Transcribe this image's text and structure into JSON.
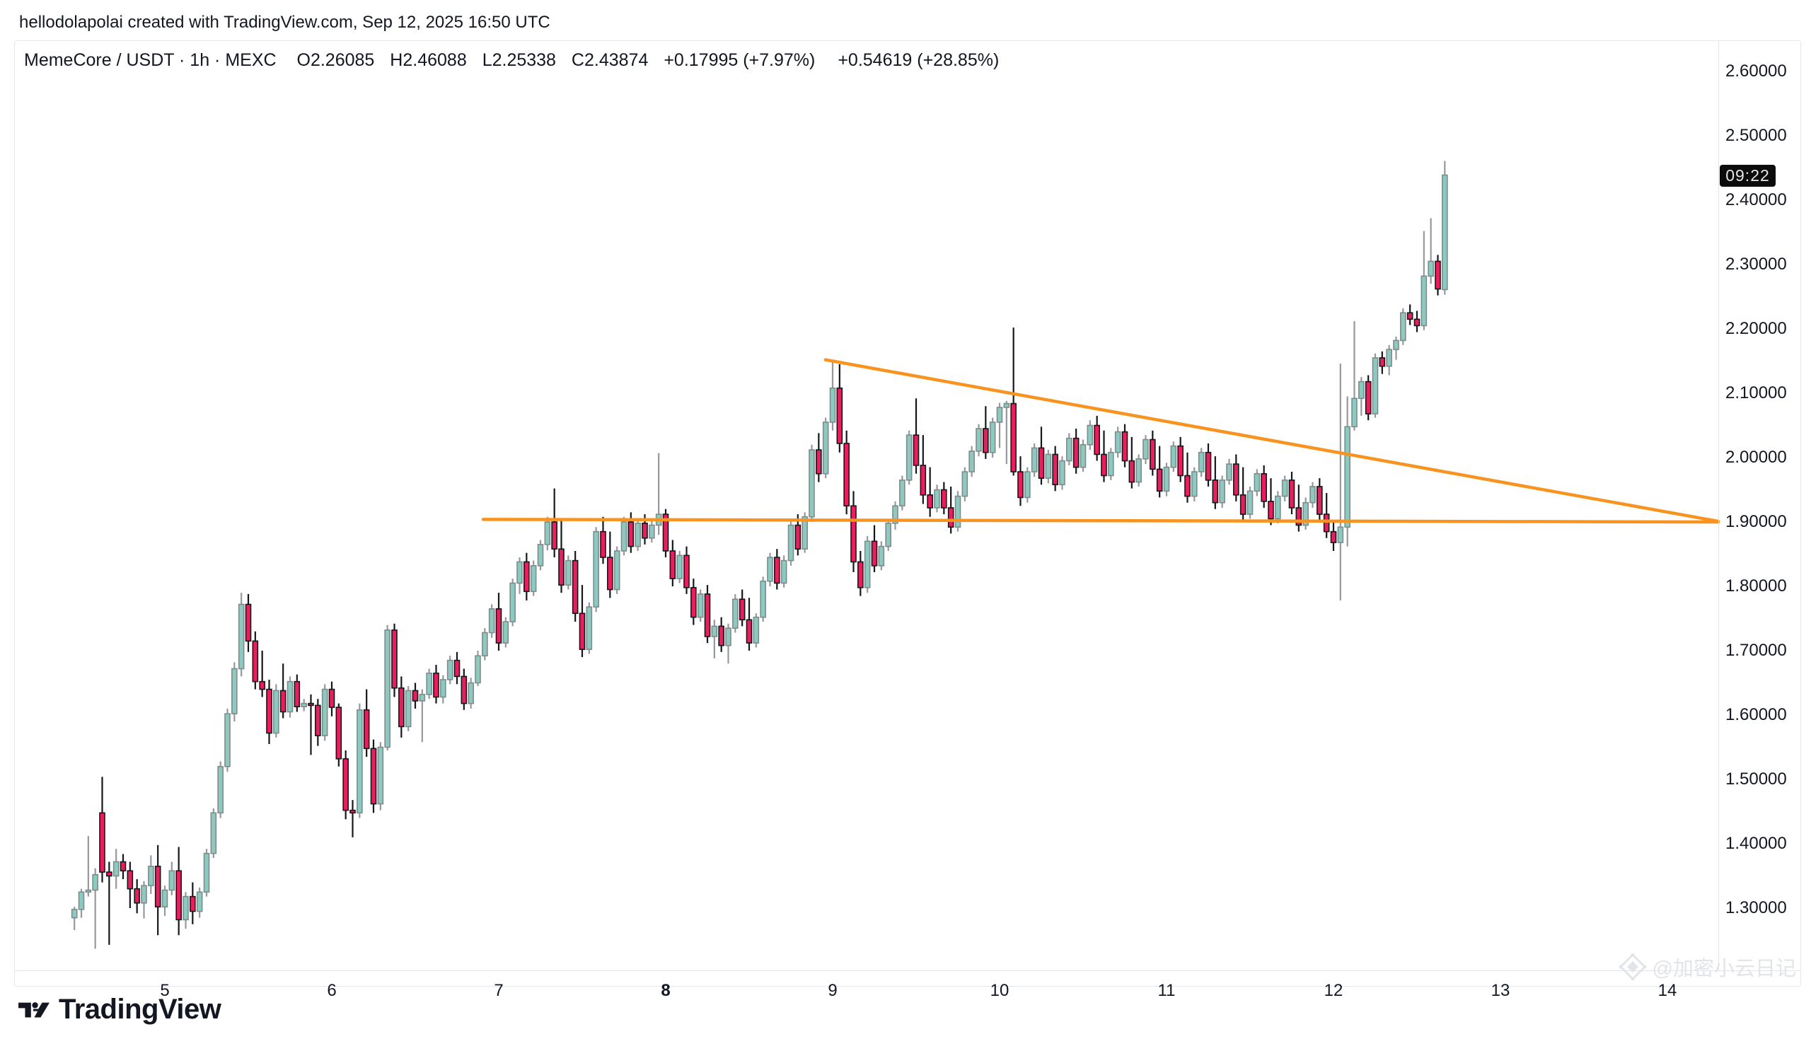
{
  "header": {
    "attribution": "hellodolapolai created with TradingView.com, Sep 12, 2025 16:50 UTC"
  },
  "legend": {
    "title": "MemeCore / USDT · 1h · MEXC",
    "open": "O2.26085",
    "high": "H2.46088",
    "low": "L2.25338",
    "close": "C2.43874",
    "change": "+0.17995 (+7.97%)",
    "change2": "+0.54619 (+28.85%)"
  },
  "price_scale": {
    "labels": [
      "2.60000",
      "2.50000",
      "2.40000",
      "2.30000",
      "2.20000",
      "2.10000",
      "2.00000",
      "1.90000",
      "1.80000",
      "1.70000",
      "1.60000",
      "1.50000",
      "1.40000",
      "1.30000"
    ],
    "countdown": "09:22",
    "countdown_price": 2.43874
  },
  "time_scale": {
    "labels": [
      {
        "text": "5",
        "day": 5,
        "bold": false
      },
      {
        "text": "6",
        "day": 6,
        "bold": false
      },
      {
        "text": "7",
        "day": 7,
        "bold": false
      },
      {
        "text": "8",
        "day": 8,
        "bold": true
      },
      {
        "text": "9",
        "day": 9,
        "bold": false
      },
      {
        "text": "10",
        "day": 10,
        "bold": false
      },
      {
        "text": "11",
        "day": 11,
        "bold": false
      },
      {
        "text": "12",
        "day": 12,
        "bold": false
      },
      {
        "text": "13",
        "day": 13,
        "bold": false
      },
      {
        "text": "14",
        "day": 14,
        "bold": false
      }
    ]
  },
  "footer": {
    "logo_text": "TradingView"
  },
  "watermark": {
    "text": "@加密小云日记"
  },
  "chart_data": {
    "type": "candlestick",
    "title": "MemeCore / USDT",
    "exchange": "MEXC",
    "interval": "1h",
    "last_bar": {
      "open": 2.26085,
      "high": 2.46088,
      "low": 2.25338,
      "close": 2.43874,
      "change_abs": 0.17995,
      "change_pct": 7.97,
      "change2_abs": 0.54619,
      "change2_pct": 28.85,
      "countdown": "09:22"
    },
    "y_axis": {
      "side": "right",
      "min": 1.3,
      "max": 2.6,
      "tick_step": 0.1,
      "grid": false
    },
    "x_axis": {
      "unit": "September 2025 (day)",
      "ticks": [
        5,
        6,
        7,
        8,
        9,
        10,
        11,
        12,
        13,
        14
      ],
      "bold_tick": 8
    },
    "series_start": "2025-09-04 11:00 UTC",
    "bar_interval_hours": 1,
    "trendlines": [
      {
        "name": "descending-resistance",
        "from": {
          "day": 8.957,
          "price": 2.152
        },
        "to": {
          "day": 14.305,
          "price": 1.901
        },
        "color": "#f7931e"
      },
      {
        "name": "horizontal-support",
        "from": {
          "day": 6.907,
          "price": 1.904
        },
        "to": {
          "day": 14.305,
          "price": 1.9
        },
        "color": "#f7931e"
      }
    ],
    "colors": {
      "up_fill": "#8ccac1",
      "up_border": "#7f8c8a",
      "up_wick": "#96989d",
      "down_fill": "#e91e5c",
      "down_border": "#14171c",
      "down_wick": "#14171c",
      "trendline": "#f7931e",
      "axis_text": "#131722",
      "border": "#e0e3eb"
    },
    "candles": [
      [
        1.285,
        1.302,
        1.266,
        1.298
      ],
      [
        1.298,
        1.33,
        1.285,
        1.325
      ],
      [
        1.325,
        1.412,
        1.318,
        1.328
      ],
      [
        1.328,
        1.362,
        1.237,
        1.352
      ],
      [
        1.448,
        1.504,
        1.34,
        1.356
      ],
      [
        1.356,
        1.372,
        1.243,
        1.35
      ],
      [
        1.35,
        1.392,
        1.33,
        1.372
      ],
      [
        1.372,
        1.384,
        1.345,
        1.358
      ],
      [
        1.358,
        1.372,
        1.3,
        1.33
      ],
      [
        1.33,
        1.345,
        1.292,
        1.308
      ],
      [
        1.308,
        1.342,
        1.284,
        1.335
      ],
      [
        1.335,
        1.382,
        1.322,
        1.365
      ],
      [
        1.365,
        1.398,
        1.258,
        1.302
      ],
      [
        1.302,
        1.335,
        1.288,
        1.328
      ],
      [
        1.328,
        1.372,
        1.32,
        1.358
      ],
      [
        1.358,
        1.395,
        1.258,
        1.282
      ],
      [
        1.282,
        1.325,
        1.268,
        1.318
      ],
      [
        1.318,
        1.34,
        1.275,
        1.295
      ],
      [
        1.295,
        1.332,
        1.285,
        1.325
      ],
      [
        1.325,
        1.392,
        1.318,
        1.385
      ],
      [
        1.385,
        1.455,
        1.378,
        1.448
      ],
      [
        1.448,
        1.528,
        1.44,
        1.52
      ],
      [
        1.52,
        1.61,
        1.512,
        1.602
      ],
      [
        1.602,
        1.682,
        1.59,
        1.672
      ],
      [
        1.672,
        1.79,
        1.66,
        1.772
      ],
      [
        1.772,
        1.788,
        1.698,
        1.715
      ],
      [
        1.715,
        1.73,
        1.64,
        1.652
      ],
      [
        1.652,
        1.7,
        1.628,
        1.64
      ],
      [
        1.64,
        1.655,
        1.555,
        1.572
      ],
      [
        1.572,
        1.648,
        1.565,
        1.638
      ],
      [
        1.638,
        1.68,
        1.595,
        1.605
      ],
      [
        1.605,
        1.66,
        1.596,
        1.652
      ],
      [
        1.652,
        1.663,
        1.605,
        1.613
      ],
      [
        1.613,
        1.625,
        1.606,
        1.618
      ],
      [
        1.618,
        1.632,
        1.538,
        1.615
      ],
      [
        1.615,
        1.625,
        1.552,
        1.568
      ],
      [
        1.568,
        1.648,
        1.56,
        1.64
      ],
      [
        1.64,
        1.652,
        1.598,
        1.612
      ],
      [
        1.612,
        1.618,
        1.52,
        1.532
      ],
      [
        1.532,
        1.545,
        1.438,
        1.452
      ],
      [
        1.452,
        1.468,
        1.41,
        1.448
      ],
      [
        1.448,
        1.618,
        1.44,
        1.608
      ],
      [
        1.608,
        1.64,
        1.535,
        1.548
      ],
      [
        1.548,
        1.562,
        1.448,
        1.462
      ],
      [
        1.462,
        1.558,
        1.452,
        1.55
      ],
      [
        1.55,
        1.74,
        1.545,
        1.732
      ],
      [
        1.732,
        1.742,
        1.628,
        1.642
      ],
      [
        1.642,
        1.66,
        1.565,
        1.582
      ],
      [
        1.582,
        1.645,
        1.575,
        1.638
      ],
      [
        1.638,
        1.65,
        1.61,
        1.622
      ],
      [
        1.622,
        1.64,
        1.558,
        1.632
      ],
      [
        1.632,
        1.672,
        1.625,
        1.665
      ],
      [
        1.665,
        1.678,
        1.618,
        1.628
      ],
      [
        1.628,
        1.662,
        1.618,
        1.655
      ],
      [
        1.655,
        1.692,
        1.648,
        1.685
      ],
      [
        1.685,
        1.698,
        1.648,
        1.66
      ],
      [
        1.66,
        1.672,
        1.608,
        1.618
      ],
      [
        1.618,
        1.658,
        1.61,
        1.65
      ],
      [
        1.65,
        1.7,
        1.645,
        1.692
      ],
      [
        1.692,
        1.735,
        1.685,
        1.728
      ],
      [
        1.728,
        1.772,
        1.72,
        1.765
      ],
      [
        1.765,
        1.79,
        1.7,
        1.712
      ],
      [
        1.712,
        1.752,
        1.705,
        1.745
      ],
      [
        1.745,
        1.812,
        1.738,
        1.805
      ],
      [
        1.805,
        1.845,
        1.788,
        1.838
      ],
      [
        1.838,
        1.852,
        1.778,
        1.792
      ],
      [
        1.792,
        1.84,
        1.785,
        1.832
      ],
      [
        1.832,
        1.872,
        1.825,
        1.865
      ],
      [
        1.865,
        1.908,
        1.856,
        1.9
      ],
      [
        1.9,
        1.952,
        1.845,
        1.858
      ],
      [
        1.858,
        1.905,
        1.79,
        1.802
      ],
      [
        1.802,
        1.848,
        1.795,
        1.84
      ],
      [
        1.84,
        1.855,
        1.745,
        1.758
      ],
      [
        1.758,
        1.802,
        1.69,
        1.702
      ],
      [
        1.702,
        1.775,
        1.695,
        1.768
      ],
      [
        1.768,
        1.892,
        1.76,
        1.885
      ],
      [
        1.885,
        1.908,
        1.835,
        1.845
      ],
      [
        1.845,
        1.885,
        1.782,
        1.795
      ],
      [
        1.795,
        1.862,
        1.788,
        1.855
      ],
      [
        1.855,
        1.908,
        1.848,
        1.9
      ],
      [
        1.9,
        1.915,
        1.852,
        1.862
      ],
      [
        1.862,
        1.905,
        1.855,
        1.898
      ],
      [
        1.898,
        1.912,
        1.865,
        1.875
      ],
      [
        1.875,
        1.902,
        1.868,
        1.895
      ],
      [
        1.895,
        2.007,
        1.88,
        1.912
      ],
      [
        1.912,
        1.92,
        1.845,
        1.855
      ],
      [
        1.855,
        1.872,
        1.8,
        1.812
      ],
      [
        1.812,
        1.855,
        1.805,
        1.848
      ],
      [
        1.848,
        1.862,
        1.788,
        1.798
      ],
      [
        1.798,
        1.812,
        1.74,
        1.752
      ],
      [
        1.752,
        1.795,
        1.745,
        1.788
      ],
      [
        1.788,
        1.802,
        1.712,
        1.722
      ],
      [
        1.722,
        1.748,
        1.688,
        1.738
      ],
      [
        1.738,
        1.752,
        1.698,
        1.708
      ],
      [
        1.708,
        1.742,
        1.68,
        1.735
      ],
      [
        1.735,
        1.788,
        1.728,
        1.78
      ],
      [
        1.78,
        1.795,
        1.738,
        1.748
      ],
      [
        1.748,
        1.782,
        1.7,
        1.712
      ],
      [
        1.712,
        1.758,
        1.705,
        1.752
      ],
      [
        1.752,
        1.815,
        1.745,
        1.808
      ],
      [
        1.808,
        1.852,
        1.8,
        1.845
      ],
      [
        1.845,
        1.858,
        1.795,
        1.805
      ],
      [
        1.805,
        1.848,
        1.798,
        1.84
      ],
      [
        1.84,
        1.902,
        1.832,
        1.895
      ],
      [
        1.895,
        1.912,
        1.848,
        1.858
      ],
      [
        1.858,
        1.915,
        1.852,
        1.908
      ],
      [
        1.908,
        2.02,
        1.9,
        2.012
      ],
      [
        2.012,
        2.038,
        1.962,
        1.975
      ],
      [
        1.975,
        2.062,
        1.968,
        2.055
      ],
      [
        2.055,
        2.152,
        2.042,
        2.108
      ],
      [
        2.108,
        2.145,
        2.008,
        2.022
      ],
      [
        2.022,
        2.042,
        1.912,
        1.925
      ],
      [
        1.925,
        1.948,
        1.822,
        1.838
      ],
      [
        1.838,
        1.855,
        1.785,
        1.798
      ],
      [
        1.798,
        1.878,
        1.79,
        1.87
      ],
      [
        1.87,
        1.895,
        1.822,
        1.832
      ],
      [
        1.832,
        1.87,
        1.825,
        1.862
      ],
      [
        1.862,
        1.905,
        1.855,
        1.898
      ],
      [
        1.898,
        1.932,
        1.888,
        1.925
      ],
      [
        1.925,
        1.972,
        1.918,
        1.965
      ],
      [
        1.965,
        2.042,
        1.958,
        2.035
      ],
      [
        2.035,
        2.092,
        1.975,
        1.988
      ],
      [
        1.988,
        2.035,
        1.928,
        1.942
      ],
      [
        1.942,
        1.985,
        1.908,
        1.922
      ],
      [
        1.922,
        1.958,
        1.915,
        1.95
      ],
      [
        1.95,
        1.962,
        1.912,
        1.922
      ],
      [
        1.922,
        1.955,
        1.882,
        1.892
      ],
      [
        1.892,
        1.948,
        1.885,
        1.94
      ],
      [
        1.94,
        1.985,
        1.932,
        1.978
      ],
      [
        1.978,
        2.018,
        1.97,
        2.01
      ],
      [
        2.01,
        2.052,
        2.002,
        2.045
      ],
      [
        2.045,
        2.08,
        1.998,
        2.008
      ],
      [
        2.008,
        2.062,
        2.0,
        2.055
      ],
      [
        2.055,
        2.085,
        2.015,
        2.078
      ],
      [
        2.078,
        2.088,
        1.99,
        2.084
      ],
      [
        2.084,
        2.202,
        1.972,
        1.978
      ],
      [
        1.978,
        2.002,
        1.925,
        1.938
      ],
      [
        1.938,
        1.985,
        1.93,
        1.978
      ],
      [
        1.978,
        2.022,
        1.97,
        2.015
      ],
      [
        2.015,
        2.048,
        1.958,
        1.968
      ],
      [
        1.968,
        2.012,
        1.96,
        2.005
      ],
      [
        2.005,
        2.018,
        1.948,
        1.958
      ],
      [
        1.958,
        2.002,
        1.95,
        1.995
      ],
      [
        1.995,
        2.038,
        1.988,
        2.03
      ],
      [
        2.03,
        2.045,
        1.975,
        1.985
      ],
      [
        1.985,
        2.028,
        1.978,
        2.02
      ],
      [
        2.02,
        2.058,
        2.012,
        2.05
      ],
      [
        2.05,
        2.065,
        1.995,
        2.005
      ],
      [
        2.005,
        2.042,
        1.962,
        1.972
      ],
      [
        1.972,
        2.015,
        1.965,
        2.008
      ],
      [
        2.008,
        2.048,
        2.0,
        2.04
      ],
      [
        2.04,
        2.052,
        1.985,
        1.995
      ],
      [
        1.995,
        2.032,
        1.952,
        1.962
      ],
      [
        1.962,
        2.005,
        1.955,
        1.998
      ],
      [
        1.998,
        2.035,
        1.99,
        2.028
      ],
      [
        2.028,
        2.042,
        1.972,
        1.982
      ],
      [
        1.982,
        2.018,
        1.938,
        1.948
      ],
      [
        1.948,
        1.992,
        1.94,
        1.985
      ],
      [
        1.985,
        2.025,
        1.978,
        2.018
      ],
      [
        2.018,
        2.032,
        1.962,
        1.972
      ],
      [
        1.972,
        2.008,
        1.93,
        1.94
      ],
      [
        1.94,
        1.985,
        1.932,
        1.978
      ],
      [
        1.978,
        2.015,
        1.97,
        2.008
      ],
      [
        2.008,
        2.022,
        1.955,
        1.965
      ],
      [
        1.965,
        2.002,
        1.92,
        1.93
      ],
      [
        1.93,
        1.972,
        1.922,
        1.965
      ],
      [
        1.965,
        1.998,
        1.958,
        1.99
      ],
      [
        1.99,
        2.005,
        1.932,
        1.942
      ],
      [
        1.942,
        1.985,
        1.902,
        1.912
      ],
      [
        1.912,
        1.955,
        1.905,
        1.948
      ],
      [
        1.948,
        1.982,
        1.94,
        1.975
      ],
      [
        1.975,
        1.988,
        1.922,
        1.932
      ],
      [
        1.932,
        1.968,
        1.895,
        1.905
      ],
      [
        1.905,
        1.948,
        1.898,
        1.94
      ],
      [
        1.94,
        1.972,
        1.932,
        1.965
      ],
      [
        1.965,
        1.978,
        1.912,
        1.922
      ],
      [
        1.922,
        1.958,
        1.885,
        1.895
      ],
      [
        1.895,
        1.938,
        1.888,
        1.93
      ],
      [
        1.93,
        1.962,
        1.922,
        1.955
      ],
      [
        1.955,
        1.968,
        1.902,
        1.912
      ],
      [
        1.912,
        1.945,
        1.875,
        1.885
      ],
      [
        1.885,
        1.902,
        1.855,
        1.868
      ],
      [
        1.868,
        2.146,
        1.778,
        1.892
      ],
      [
        1.892,
        2.095,
        1.862,
        2.048
      ],
      [
        2.048,
        2.212,
        2.042,
        2.092
      ],
      [
        2.092,
        2.125,
        2.065,
        2.118
      ],
      [
        2.118,
        2.128,
        2.058,
        2.068
      ],
      [
        2.068,
        2.162,
        2.062,
        2.155
      ],
      [
        2.155,
        2.165,
        2.13,
        2.142
      ],
      [
        2.142,
        2.175,
        2.128,
        2.168
      ],
      [
        2.168,
        2.188,
        2.152,
        2.182
      ],
      [
        2.182,
        2.232,
        2.175,
        2.225
      ],
      [
        2.225,
        2.238,
        2.206,
        2.215
      ],
      [
        2.215,
        2.228,
        2.195,
        2.205
      ],
      [
        2.205,
        2.352,
        2.198,
        2.282
      ],
      [
        2.282,
        2.372,
        2.27,
        2.305
      ],
      [
        2.305,
        2.315,
        2.252,
        2.262
      ],
      [
        2.261,
        2.461,
        2.253,
        2.439
      ]
    ]
  }
}
